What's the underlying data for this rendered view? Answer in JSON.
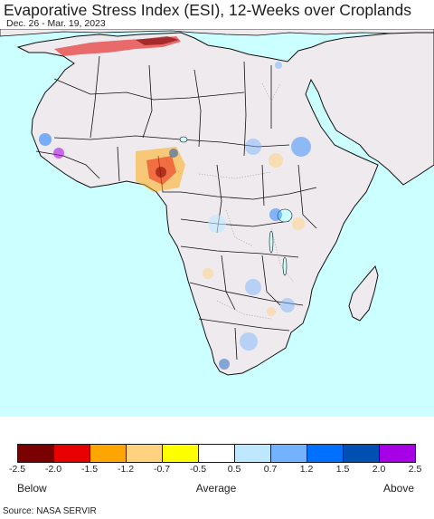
{
  "header": {
    "title": "Evaporative Stress Index (ESI), 12-Weeks over Croplands",
    "date_range": "Dec. 26 - Mar. 19, 2023"
  },
  "map": {
    "ocean_color": "#ccffff",
    "land_color": "#eeeaee",
    "border_color": "#111111"
  },
  "legend": {
    "colors": [
      "#7b0000",
      "#e60000",
      "#ffa500",
      "#ffd27f",
      "#ffff00",
      "#ffffff",
      "#bee8ff",
      "#73b2ff",
      "#0070ff",
      "#0050b4",
      "#a800e6"
    ],
    "ticks": [
      "-2.5",
      "-2.0",
      "-1.5",
      "-1.2",
      "-0.7",
      "-0.5",
      "0.5",
      "0.7",
      "1.2",
      "1.5",
      "2.0",
      "2.5"
    ],
    "below_label": "Below",
    "average_label": "Average",
    "above_label": "Above"
  },
  "footer": {
    "source": "Source: NASA SERVIR"
  }
}
